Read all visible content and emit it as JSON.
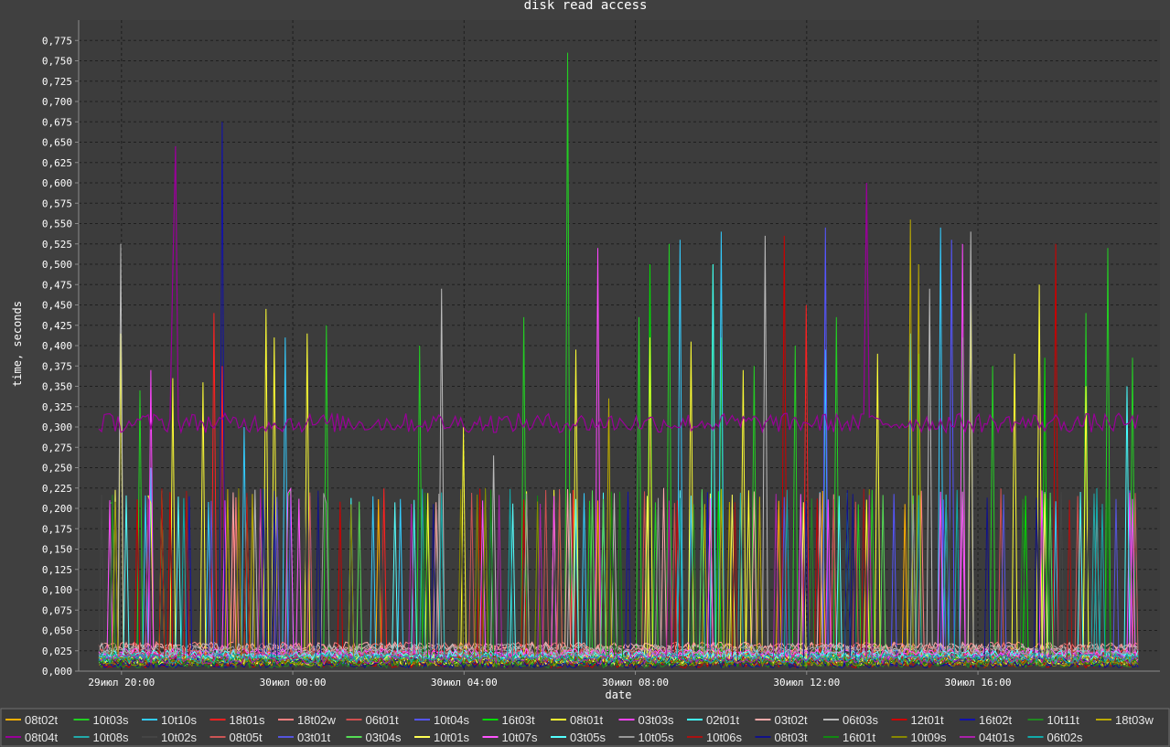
{
  "colors": {
    "background": "#404040",
    "plot_background": "#3c3c3c",
    "grid": "#1e1e1e",
    "axis": "#8c8c8c",
    "legend_background": "#3a3a3a",
    "legend_border": "#707070"
  },
  "chart_data": {
    "type": "line",
    "title": "disk read access",
    "xlabel": "date",
    "ylabel": "time, seconds",
    "x_range": [
      "29июл 19:00",
      "30июл 20:15"
    ],
    "x_ticks": [
      "29июл 20:00",
      "30июл 00:00",
      "30июл 04:00",
      "30июл 08:00",
      "30июл 12:00",
      "30июл 16:00"
    ],
    "ylim": [
      0,
      0.8
    ],
    "y_ticks": [
      "0,000",
      "0,025",
      "0,050",
      "0,075",
      "0,100",
      "0,125",
      "0,150",
      "0,175",
      "0,200",
      "0,225",
      "0,250",
      "0,275",
      "0,300",
      "0,325",
      "0,350",
      "0,375",
      "0,400",
      "0,425",
      "0,450",
      "0,475",
      "0,500",
      "0,525",
      "0,550",
      "0,575",
      "0,600",
      "0,625",
      "0,650",
      "0,675",
      "0,700",
      "0,725",
      "0,750",
      "0,775"
    ],
    "grid": true,
    "legend_position": "bottom",
    "series": [
      {
        "name": "08t02t",
        "color": "#ffb000",
        "baseline": 0.013,
        "peaks": []
      },
      {
        "name": "10t03s",
        "color": "#22d022",
        "baseline": 0.018,
        "peaks": [
          [
            0.04,
            0.345
          ],
          [
            0.22,
            0.425
          ],
          [
            0.31,
            0.4
          ],
          [
            0.41,
            0.435
          ],
          [
            0.45,
            0.76
          ],
          [
            0.52,
            0.435
          ],
          [
            0.55,
            0.525
          ],
          [
            0.6,
            0.41
          ],
          [
            0.63,
            0.375
          ],
          [
            0.67,
            0.4
          ],
          [
            0.71,
            0.435
          ],
          [
            0.79,
            0.39
          ],
          [
            0.86,
            0.375
          ],
          [
            0.95,
            0.44
          ],
          [
            0.97,
            0.52
          ],
          [
            0.995,
            0.385
          ]
        ]
      },
      {
        "name": "10t10s",
        "color": "#33ccff",
        "baseline": 0.02,
        "peaks": [
          [
            0.05,
            0.25
          ],
          [
            0.14,
            0.3
          ],
          [
            0.18,
            0.41
          ],
          [
            0.56,
            0.53
          ],
          [
            0.6,
            0.54
          ],
          [
            0.7,
            0.395
          ],
          [
            0.78,
            0.415
          ],
          [
            0.81,
            0.545
          ]
        ]
      },
      {
        "name": "18t01s",
        "color": "#ff2020",
        "baseline": 0.02,
        "peaks": [
          [
            0.11,
            0.44
          ],
          [
            0.12,
            0.375
          ],
          [
            0.68,
            0.45
          ]
        ]
      },
      {
        "name": "18t02w",
        "color": "#ff8080",
        "baseline": 0.03,
        "peaks": []
      },
      {
        "name": "06t01t",
        "color": "#d05050",
        "baseline": 0.022,
        "peaks": []
      },
      {
        "name": "10t04s",
        "color": "#5555ff",
        "baseline": 0.015,
        "peaks": [
          [
            0.7,
            0.545
          ],
          [
            0.82,
            0.53
          ]
        ]
      },
      {
        "name": "16t03t",
        "color": "#00dd00",
        "baseline": 0.017,
        "peaks": [
          [
            0.53,
            0.5
          ],
          [
            0.59,
            0.5
          ],
          [
            0.83,
            0.41
          ],
          [
            0.91,
            0.385
          ]
        ]
      },
      {
        "name": "08t01t",
        "color": "#ffff33",
        "baseline": 0.012,
        "peaks": [
          [
            0.02,
            0.415
          ],
          [
            0.07,
            0.36
          ],
          [
            0.1,
            0.355
          ],
          [
            0.16,
            0.445
          ],
          [
            0.17,
            0.41
          ],
          [
            0.2,
            0.415
          ],
          [
            0.35,
            0.3
          ],
          [
            0.46,
            0.395
          ],
          [
            0.53,
            0.41
          ],
          [
            0.57,
            0.405
          ],
          [
            0.62,
            0.37
          ],
          [
            0.75,
            0.39
          ],
          [
            0.84,
            0.46
          ],
          [
            0.88,
            0.39
          ],
          [
            0.905,
            0.475
          ],
          [
            0.95,
            0.35
          ]
        ]
      },
      {
        "name": "03t03s",
        "color": "#ff44ff",
        "baseline": 0.02,
        "peaks": [
          [
            0.01,
            0.21
          ],
          [
            0.05,
            0.37
          ],
          [
            0.48,
            0.52
          ],
          [
            0.83,
            0.525
          ]
        ]
      },
      {
        "name": "02t01t",
        "color": "#44ffff",
        "baseline": 0.016,
        "peaks": [
          [
            0.59,
            0.5
          ],
          [
            0.99,
            0.35
          ]
        ]
      },
      {
        "name": "03t02t",
        "color": "#ffaaaa",
        "baseline": 0.03,
        "peaks": []
      },
      {
        "name": "06t03s",
        "color": "#bbbbbb",
        "baseline": 0.028,
        "peaks": [
          [
            0.02,
            0.525
          ],
          [
            0.33,
            0.47
          ],
          [
            0.38,
            0.265
          ],
          [
            0.64,
            0.535
          ],
          [
            0.8,
            0.47
          ],
          [
            0.84,
            0.54
          ]
        ]
      },
      {
        "name": "12t01t",
        "color": "#cc0000",
        "baseline": 0.01,
        "peaks": [
          [
            0.66,
            0.535
          ],
          [
            0.92,
            0.525
          ]
        ]
      },
      {
        "name": "16t02t",
        "color": "#1111aa",
        "baseline": 0.01,
        "peaks": [
          [
            0.12,
            0.675
          ]
        ]
      },
      {
        "name": "10t11t",
        "color": "#228822",
        "baseline": 0.01,
        "peaks": []
      },
      {
        "name": "18t03w",
        "color": "#bbaa00",
        "baseline": 0.012,
        "peaks": [
          [
            0.49,
            0.335
          ],
          [
            0.78,
            0.555
          ],
          [
            0.79,
            0.5
          ]
        ]
      },
      {
        "name": "08t04t",
        "color": "#990099",
        "baseline": 0.305,
        "peaks": [
          [
            0.075,
            0.645
          ],
          [
            0.07,
            0.49
          ],
          [
            0.74,
            0.6
          ]
        ]
      },
      {
        "name": "10t08s",
        "color": "#22aaaa",
        "baseline": 0.018,
        "peaks": []
      },
      {
        "name": "10t02s",
        "color": "#444444",
        "baseline": 0.012,
        "peaks": []
      },
      {
        "name": "08t05t",
        "color": "#cc5555",
        "baseline": 0.02,
        "peaks": []
      },
      {
        "name": "03t01t",
        "color": "#5555dd",
        "baseline": 0.015,
        "peaks": []
      },
      {
        "name": "03t04s",
        "color": "#55dd55",
        "baseline": 0.014,
        "peaks": []
      },
      {
        "name": "10t01s",
        "color": "#ffff55",
        "baseline": 0.014,
        "peaks": []
      },
      {
        "name": "10t07s",
        "color": "#ff55ff",
        "baseline": 0.022,
        "peaks": []
      },
      {
        "name": "03t05s",
        "color": "#55ffff",
        "baseline": 0.02,
        "peaks": []
      },
      {
        "name": "10t05s",
        "color": "#999999",
        "baseline": 0.025,
        "peaks": []
      },
      {
        "name": "10t06s",
        "color": "#aa1111",
        "baseline": 0.012,
        "peaks": []
      },
      {
        "name": "08t03t",
        "color": "#111188",
        "baseline": 0.01,
        "peaks": []
      },
      {
        "name": "16t01t",
        "color": "#118811",
        "baseline": 0.012,
        "peaks": []
      },
      {
        "name": "10t09s",
        "color": "#888800",
        "baseline": 0.012,
        "peaks": []
      },
      {
        "name": "04t01s",
        "color": "#aa22aa",
        "baseline": 0.015,
        "peaks": []
      },
      {
        "name": "06t02s",
        "color": "#11aaaa",
        "baseline": 0.016,
        "peaks": []
      }
    ]
  }
}
